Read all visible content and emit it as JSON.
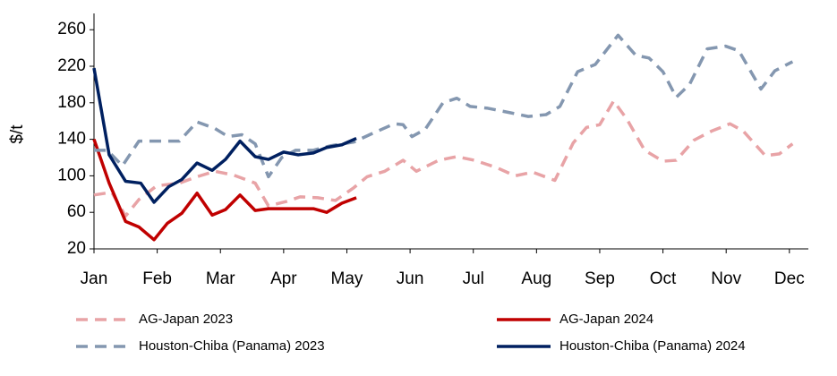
{
  "chart_data": {
    "type": "line",
    "ylabel": "$/t",
    "xlim": [
      0,
      11.3
    ],
    "xticks": [
      {
        "value": 0,
        "label": "Jan"
      },
      {
        "value": 1,
        "label": "Feb"
      },
      {
        "value": 2,
        "label": "Mar"
      },
      {
        "value": 3,
        "label": "Apr"
      },
      {
        "value": 4,
        "label": "May"
      },
      {
        "value": 5,
        "label": "Jun"
      },
      {
        "value": 6,
        "label": "Jul"
      },
      {
        "value": 7,
        "label": "Aug"
      },
      {
        "value": 8,
        "label": "Sep"
      },
      {
        "value": 9,
        "label": "Oct"
      },
      {
        "value": 10,
        "label": "Nov"
      },
      {
        "value": 11,
        "label": "Dec"
      }
    ],
    "ylim": [
      20,
      270
    ],
    "yticks": [
      20,
      60,
      100,
      140,
      180,
      220,
      260
    ],
    "series": [
      {
        "name": "AG-Japan 2023",
        "color": "#e8a3a6",
        "style": "dashed",
        "x": [
          0,
          0.28,
          0.5,
          0.71,
          0.99,
          1.35,
          1.63,
          1.91,
          2.2,
          2.55,
          2.76,
          3.05,
          3.26,
          3.54,
          3.82,
          4.11,
          4.32,
          4.6,
          4.89,
          5.1,
          5.45,
          5.74,
          6.02,
          6.37,
          6.66,
          6.94,
          7.29,
          7.58,
          7.79,
          8.0,
          8.22,
          8.43,
          8.71,
          9.0,
          9.21,
          9.49,
          9.77,
          10.06,
          10.27,
          10.62,
          10.84,
          11.05
        ],
        "values": [
          79,
          82,
          56,
          74,
          89,
          92,
          99,
          105,
          101,
          92,
          67,
          72,
          77,
          76,
          73,
          87,
          99,
          105,
          117,
          105,
          117,
          121,
          117,
          109,
          100,
          104,
          95,
          136,
          153,
          156,
          182,
          162,
          128,
          116,
          117,
          139,
          149,
          157,
          149,
          122,
          124,
          135
        ]
      },
      {
        "name": "AG-Japan 2024",
        "color": "#c00000",
        "style": "solid",
        "x": [
          0,
          0.24,
          0.5,
          0.71,
          0.95,
          1.16,
          1.39,
          1.63,
          1.87,
          2.08,
          2.31,
          2.55,
          2.76,
          3.05,
          3.47,
          3.68,
          3.92,
          4.15
        ],
        "values": [
          140,
          92,
          50,
          44,
          30,
          48,
          59,
          81,
          57,
          63,
          79,
          62,
          64,
          64,
          64,
          60,
          70,
          76
        ]
      },
      {
        "name": "Houston-Chiba (Panama) 2023",
        "color": "#8497b0",
        "style": "dashed",
        "x": [
          0,
          0.21,
          0.45,
          0.71,
          0.99,
          1.35,
          1.63,
          1.91,
          2.12,
          2.34,
          2.55,
          2.76,
          2.97,
          3.19,
          3.47,
          3.75,
          4.11,
          4.39,
          4.75,
          4.89,
          5.03,
          5.24,
          5.52,
          5.74,
          5.95,
          6.23,
          6.59,
          6.87,
          7.15,
          7.37,
          7.65,
          7.93,
          8.29,
          8.57,
          8.78,
          9.0,
          9.21,
          9.42,
          9.7,
          9.99,
          10.2,
          10.55,
          10.77,
          11.05
        ],
        "values": [
          128,
          128,
          111,
          138,
          138,
          138,
          159,
          152,
          143,
          145,
          135,
          99,
          120,
          128,
          128,
          133,
          137,
          146,
          157,
          156,
          143,
          151,
          180,
          185,
          176,
          174,
          169,
          165,
          167,
          176,
          214,
          222,
          254,
          232,
          229,
          214,
          186,
          200,
          239,
          242,
          237,
          195,
          215,
          225
        ]
      },
      {
        "name": "Houston-Chiba (Panama) 2024",
        "color": "#002060",
        "style": "solid",
        "x": [
          0,
          0.24,
          0.5,
          0.74,
          0.95,
          1.18,
          1.39,
          1.63,
          1.87,
          2.08,
          2.31,
          2.55,
          2.76,
          3.0,
          3.23,
          3.47,
          3.68,
          3.92,
          4.15
        ],
        "values": [
          218,
          123,
          94,
          92,
          71,
          88,
          96,
          114,
          106,
          118,
          138,
          121,
          118,
          126,
          123,
          125,
          131,
          134,
          141
        ]
      }
    ]
  }
}
